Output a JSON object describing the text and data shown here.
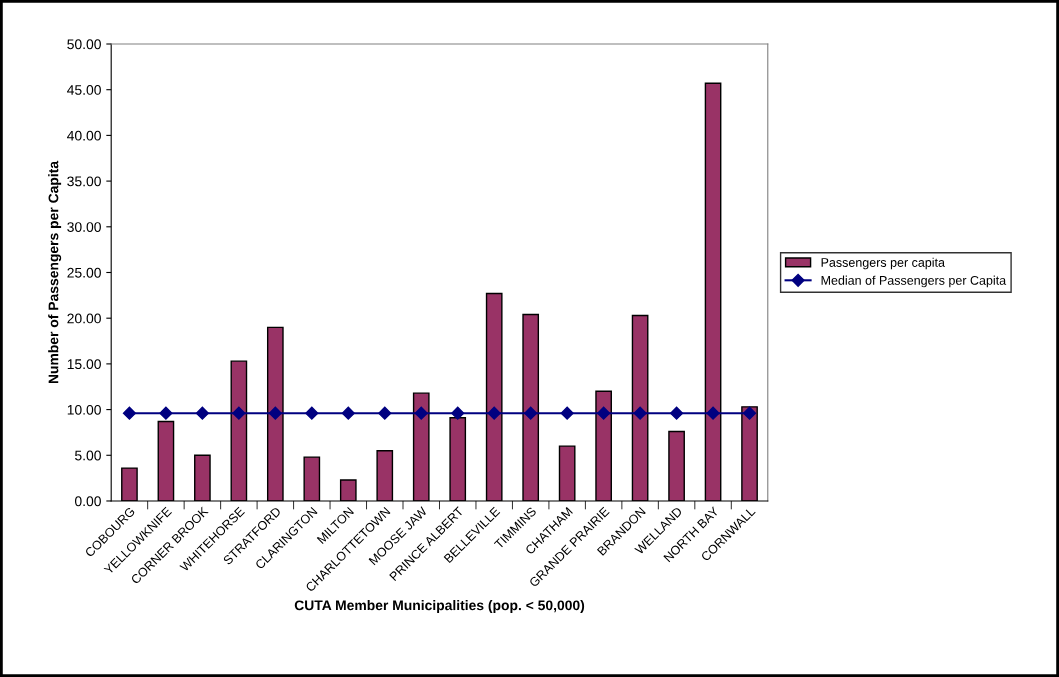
{
  "chart_data": {
    "type": "bar",
    "xlabel": "CUTA Member Municipalities (pop. < 50,000)",
    "ylabel": "Number of Passengers per Capita",
    "categories": [
      "COBOURG",
      "YELLOWKNIFE",
      "CORNER BROOK",
      "WHITEHORSE",
      "STRATFORD",
      "CLARINGTON",
      "MILTON",
      "CHARLOTTETOWN",
      "MOOSE JAW",
      "PRINCE ALBERT",
      "BELLEVILLE",
      "TIMMINS",
      "CHATHAM",
      "GRANDE PRAIRIE",
      "BRANDON",
      "WELLAND",
      "NORTH BAY",
      "CORNWALL"
    ],
    "series": [
      {
        "name": "Passengers per capita",
        "color": "#993366",
        "values": [
          3.6,
          8.7,
          5.0,
          15.3,
          19.0,
          4.8,
          2.3,
          5.5,
          11.8,
          9.1,
          22.7,
          20.4,
          6.0,
          12.0,
          20.3,
          7.6,
          45.7,
          10.3
        ]
      },
      {
        "name": "Median of Passengers per Capita",
        "type": "line",
        "color": "#000080",
        "marker": "diamond",
        "values": [
          9.6,
          9.6,
          9.6,
          9.6,
          9.6,
          9.6,
          9.6,
          9.6,
          9.6,
          9.6,
          9.6,
          9.6,
          9.6,
          9.6,
          9.6,
          9.6,
          9.6,
          9.6
        ]
      }
    ],
    "ylim": [
      0,
      50
    ],
    "yticks": [
      {
        "value": 0,
        "label": "0.00"
      },
      {
        "value": 5,
        "label": "5.00"
      },
      {
        "value": 10,
        "label": "10.00"
      },
      {
        "value": 15,
        "label": "15.00"
      },
      {
        "value": 20,
        "label": "20.00"
      },
      {
        "value": 25,
        "label": "25.00"
      },
      {
        "value": 30,
        "label": "30.00"
      },
      {
        "value": 35,
        "label": "35.00"
      },
      {
        "value": 40,
        "label": "40.00"
      },
      {
        "value": 45,
        "label": "45.00"
      },
      {
        "value": 50,
        "label": "50.00"
      }
    ],
    "grid": false,
    "legend": "right"
  }
}
